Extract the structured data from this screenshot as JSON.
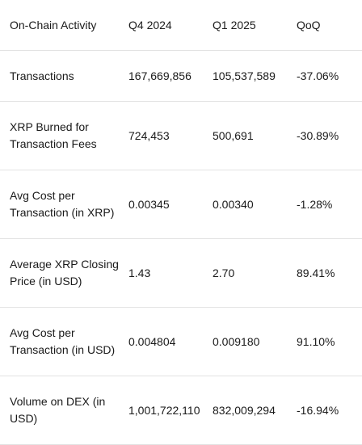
{
  "table": {
    "headers": [
      "On-Chain Activity",
      "Q4 2024",
      "Q1 2025",
      "QoQ"
    ],
    "rows": [
      {
        "metric": "Transactions",
        "q4": "167,669,856",
        "q1": "105,537,589",
        "qoq": "-37.06%"
      },
      {
        "metric": "XRP Burned for Transaction Fees",
        "q4": "724,453",
        "q1": "500,691",
        "qoq": "-30.89%"
      },
      {
        "metric": "Avg Cost per Transaction (in XRP)",
        "q4": "0.00345",
        "q1": "0.00340",
        "qoq": "-1.28%"
      },
      {
        "metric": "Average XRP Closing Price (in USD)",
        "q4": "1.43",
        "q1": "2.70",
        "qoq": "89.41%"
      },
      {
        "metric": "Avg Cost per Transaction (in USD)",
        "q4": "0.004804",
        "q1": "0.009180",
        "qoq": "91.10%"
      },
      {
        "metric": "Volume on DEX (in USD)",
        "q4": "1,001,722,110",
        "q1": "832,009,294",
        "qoq": "-16.94%"
      }
    ]
  }
}
